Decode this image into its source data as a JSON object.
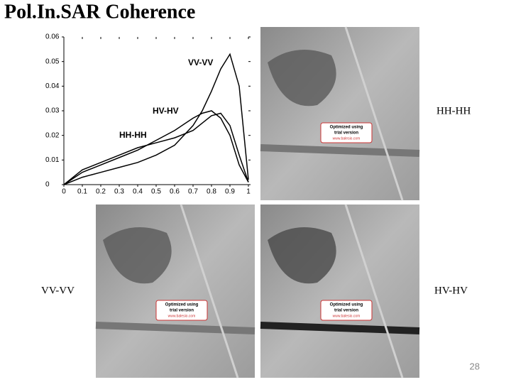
{
  "title": "Pol.In.SAR Coherence",
  "chart_data": {
    "type": "line",
    "x": [
      0,
      0.1,
      0.2,
      0.3,
      0.4,
      0.5,
      0.6,
      0.7,
      0.75,
      0.8,
      0.85,
      0.9,
      0.95,
      1
    ],
    "series": [
      {
        "name": "VV-VV",
        "color": "#000000",
        "values": [
          0,
          0.003,
          0.005,
          0.007,
          0.009,
          0.012,
          0.016,
          0.024,
          0.03,
          0.038,
          0.047,
          0.053,
          0.04,
          0.002
        ]
      },
      {
        "name": "HV-HV",
        "color": "#000000",
        "values": [
          0,
          0.005,
          0.008,
          0.011,
          0.014,
          0.018,
          0.022,
          0.027,
          0.029,
          0.03,
          0.027,
          0.02,
          0.008,
          0.001
        ]
      },
      {
        "name": "HH-HH",
        "color": "#000000",
        "values": [
          0,
          0.006,
          0.009,
          0.012,
          0.015,
          0.017,
          0.019,
          0.022,
          0.025,
          0.028,
          0.029,
          0.024,
          0.012,
          0.001
        ]
      }
    ],
    "xlim": [
      0,
      1
    ],
    "xticks": [
      0,
      0.1,
      0.2,
      0.3,
      0.4,
      0.5,
      0.6,
      0.7,
      0.8,
      0.9,
      1
    ],
    "ylim": [
      0,
      0.06
    ],
    "yticks": [
      0,
      0.01,
      0.02,
      0.03,
      0.04,
      0.05,
      0.06
    ]
  },
  "images": [
    {
      "label": "HH-HH"
    },
    {
      "label": "VV-VV"
    },
    {
      "label": "HV-HV"
    }
  ],
  "watermark": {
    "line1": "Optimized using",
    "line2": "trial version",
    "url": "www.balesio.com"
  },
  "page_number": "28"
}
